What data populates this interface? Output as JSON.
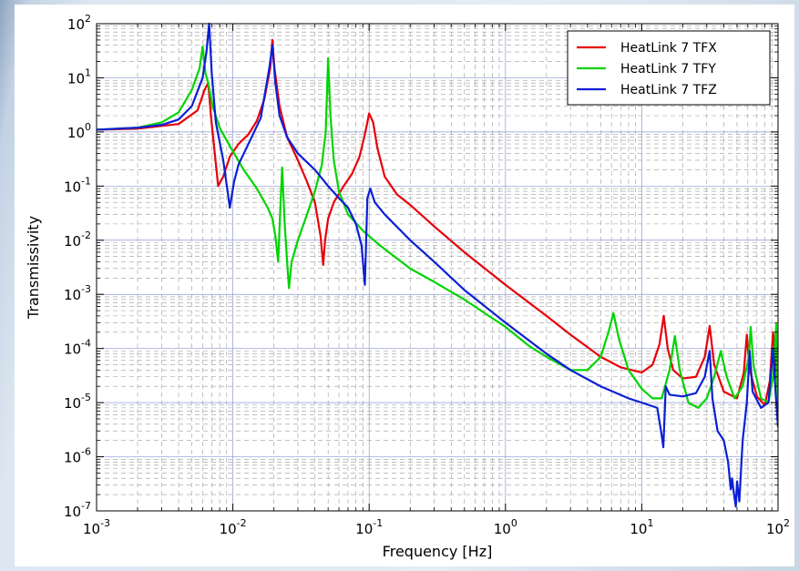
{
  "chart_data": {
    "type": "line",
    "title": "",
    "xlabel": "Frequency [Hz]",
    "ylabel": "Transmissivity",
    "x_scale": "log",
    "y_scale": "log",
    "xlim": [
      0.001,
      100
    ],
    "ylim": [
      1e-07,
      100
    ],
    "grid": true,
    "legend_position": "top-right",
    "x_tick_labels": [
      {
        "base": "10",
        "exp": "-3"
      },
      {
        "base": "10",
        "exp": "-2"
      },
      {
        "base": "10",
        "exp": "-1"
      },
      {
        "base": "10",
        "exp": "0"
      },
      {
        "base": "10",
        "exp": "1"
      },
      {
        "base": "10",
        "exp": "2"
      }
    ],
    "y_tick_labels": [
      {
        "base": "10",
        "exp": "-7"
      },
      {
        "base": "10",
        "exp": "-6"
      },
      {
        "base": "10",
        "exp": "-5"
      },
      {
        "base": "10",
        "exp": "-4"
      },
      {
        "base": "10",
        "exp": "-3"
      },
      {
        "base": "10",
        "exp": "-2"
      },
      {
        "base": "10",
        "exp": "-1"
      },
      {
        "base": "10",
        "exp": "0"
      },
      {
        "base": "10",
        "exp": "1"
      },
      {
        "base": "10",
        "exp": "2"
      }
    ],
    "series": [
      {
        "name": "HeatLink 7 TFX",
        "color": "#e8000b",
        "points": [
          [
            0.001,
            1.1
          ],
          [
            0.002,
            1.15
          ],
          [
            0.004,
            1.4
          ],
          [
            0.0055,
            2.5
          ],
          [
            0.0062,
            6
          ],
          [
            0.0066,
            8
          ],
          [
            0.0069,
            2
          ],
          [
            0.0073,
            0.5
          ],
          [
            0.0078,
            0.1
          ],
          [
            0.0085,
            0.15
          ],
          [
            0.0095,
            0.35
          ],
          [
            0.011,
            0.6
          ],
          [
            0.013,
            0.9
          ],
          [
            0.015,
            1.6
          ],
          [
            0.017,
            4
          ],
          [
            0.0188,
            15
          ],
          [
            0.0195,
            50
          ],
          [
            0.0202,
            15
          ],
          [
            0.022,
            3
          ],
          [
            0.025,
            0.8
          ],
          [
            0.03,
            0.3
          ],
          [
            0.035,
            0.12
          ],
          [
            0.04,
            0.05
          ],
          [
            0.044,
            0.012
          ],
          [
            0.046,
            0.0035
          ],
          [
            0.0475,
            0.01
          ],
          [
            0.05,
            0.025
          ],
          [
            0.055,
            0.05
          ],
          [
            0.065,
            0.1
          ],
          [
            0.075,
            0.17
          ],
          [
            0.085,
            0.35
          ],
          [
            0.093,
            0.9
          ],
          [
            0.1,
            2.2
          ],
          [
            0.107,
            1.5
          ],
          [
            0.115,
            0.5
          ],
          [
            0.13,
            0.15
          ],
          [
            0.16,
            0.07
          ],
          [
            0.2,
            0.045
          ],
          [
            0.3,
            0.018
          ],
          [
            0.5,
            0.006
          ],
          [
            1,
            0.0015
          ],
          [
            2,
            0.0004
          ],
          [
            3,
            0.00018
          ],
          [
            5,
            7e-05
          ],
          [
            7,
            4.5e-05
          ],
          [
            10,
            3.6e-05
          ],
          [
            12,
            5e-05
          ],
          [
            13.5,
            0.00012
          ],
          [
            14.5,
            0.0004
          ],
          [
            15.5,
            0.0001
          ],
          [
            17,
            4e-05
          ],
          [
            20,
            2.8e-05
          ],
          [
            25,
            3e-05
          ],
          [
            29,
            7e-05
          ],
          [
            31.5,
            0.00026
          ],
          [
            34,
            5e-05
          ],
          [
            40,
            1.6e-05
          ],
          [
            50,
            1.2e-05
          ],
          [
            56,
            3.5e-05
          ],
          [
            59,
            0.00018
          ],
          [
            62,
            4e-05
          ],
          [
            70,
            1.3e-05
          ],
          [
            80,
            9e-06
          ],
          [
            87,
            2.5e-05
          ],
          [
            92,
            0.0002
          ],
          [
            97,
            4e-05
          ],
          [
            100,
            1.5e-05
          ]
        ]
      },
      {
        "name": "HeatLink 7 TFY",
        "color": "#00d400",
        "points": [
          [
            0.001,
            1.1
          ],
          [
            0.002,
            1.2
          ],
          [
            0.003,
            1.5
          ],
          [
            0.004,
            2.3
          ],
          [
            0.005,
            6
          ],
          [
            0.0057,
            15
          ],
          [
            0.006,
            38
          ],
          [
            0.0063,
            12
          ],
          [
            0.0066,
            8
          ],
          [
            0.0071,
            3
          ],
          [
            0.008,
            1.2
          ],
          [
            0.0095,
            0.55
          ],
          [
            0.012,
            0.2
          ],
          [
            0.015,
            0.09
          ],
          [
            0.018,
            0.04
          ],
          [
            0.0195,
            0.025
          ],
          [
            0.0205,
            0.012
          ],
          [
            0.0215,
            0.004
          ],
          [
            0.0222,
            0.03
          ],
          [
            0.023,
            0.22
          ],
          [
            0.024,
            0.02
          ],
          [
            0.025,
            0.004
          ],
          [
            0.0258,
            0.0013
          ],
          [
            0.027,
            0.004
          ],
          [
            0.03,
            0.01
          ],
          [
            0.035,
            0.03
          ],
          [
            0.04,
            0.08
          ],
          [
            0.045,
            0.25
          ],
          [
            0.048,
            1
          ],
          [
            0.05,
            23
          ],
          [
            0.052,
            2
          ],
          [
            0.055,
            0.3
          ],
          [
            0.06,
            0.08
          ],
          [
            0.07,
            0.03
          ],
          [
            0.09,
            0.015
          ],
          [
            0.12,
            0.008
          ],
          [
            0.2,
            0.003
          ],
          [
            0.3,
            0.0017
          ],
          [
            0.5,
            0.0008
          ],
          [
            1,
            0.00025
          ],
          [
            1.5,
            0.00011
          ],
          [
            2,
            7e-05
          ],
          [
            3,
            4e-05
          ],
          [
            4,
            4e-05
          ],
          [
            5,
            7e-05
          ],
          [
            5.7,
            0.0002
          ],
          [
            6.2,
            0.00045
          ],
          [
            6.8,
            0.00015
          ],
          [
            8,
            4e-05
          ],
          [
            10,
            1.8e-05
          ],
          [
            12,
            1.2e-05
          ],
          [
            14,
            1.2e-05
          ],
          [
            16,
            4e-05
          ],
          [
            17.5,
            0.00017
          ],
          [
            19,
            4e-05
          ],
          [
            22,
            1e-05
          ],
          [
            26,
            8e-06
          ],
          [
            30,
            1.2e-05
          ],
          [
            34,
            3e-05
          ],
          [
            38,
            9e-05
          ],
          [
            42,
            3e-05
          ],
          [
            48,
            1.2e-05
          ],
          [
            55,
            2e-05
          ],
          [
            61,
            7e-05
          ],
          [
            63,
            0.00025
          ],
          [
            66,
            5e-05
          ],
          [
            75,
            1.2e-05
          ],
          [
            85,
            1e-05
          ],
          [
            92,
            3e-05
          ],
          [
            97,
            0.00028
          ],
          [
            100,
            4e-06
          ]
        ]
      },
      {
        "name": "HeatLink 7 TFZ",
        "color": "#0b1fd6",
        "points": [
          [
            0.001,
            1.1
          ],
          [
            0.002,
            1.2
          ],
          [
            0.003,
            1.35
          ],
          [
            0.004,
            1.7
          ],
          [
            0.005,
            3
          ],
          [
            0.006,
            10
          ],
          [
            0.0064,
            30
          ],
          [
            0.0067,
            100
          ],
          [
            0.007,
            12
          ],
          [
            0.0075,
            1.5
          ],
          [
            0.0085,
            0.3
          ],
          [
            0.0095,
            0.04
          ],
          [
            0.0102,
            0.12
          ],
          [
            0.011,
            0.25
          ],
          [
            0.013,
            0.6
          ],
          [
            0.016,
            1.8
          ],
          [
            0.0185,
            15
          ],
          [
            0.0195,
            40
          ],
          [
            0.0205,
            8
          ],
          [
            0.022,
            2
          ],
          [
            0.025,
            0.8
          ],
          [
            0.03,
            0.4
          ],
          [
            0.04,
            0.2
          ],
          [
            0.05,
            0.1
          ],
          [
            0.06,
            0.06
          ],
          [
            0.07,
            0.04
          ],
          [
            0.08,
            0.02
          ],
          [
            0.088,
            0.008
          ],
          [
            0.093,
            0.0015
          ],
          [
            0.097,
            0.06
          ],
          [
            0.102,
            0.09
          ],
          [
            0.11,
            0.05
          ],
          [
            0.13,
            0.03
          ],
          [
            0.2,
            0.01
          ],
          [
            0.3,
            0.004
          ],
          [
            0.5,
            0.0012
          ],
          [
            1,
            0.0003
          ],
          [
            2,
            8e-05
          ],
          [
            3,
            4e-05
          ],
          [
            5,
            2e-05
          ],
          [
            8,
            1.2e-05
          ],
          [
            10,
            1e-05
          ],
          [
            13,
            8e-06
          ],
          [
            14,
            2.5e-06
          ],
          [
            14.4,
            1.5e-06
          ],
          [
            15,
            2e-05
          ],
          [
            16,
            1.4e-05
          ],
          [
            20,
            1.3e-05
          ],
          [
            25,
            1.5e-05
          ],
          [
            29,
            3e-05
          ],
          [
            31.5,
            9e-05
          ],
          [
            33,
            1.2e-05
          ],
          [
            36,
            3e-06
          ],
          [
            40,
            2e-06
          ],
          [
            43,
            8e-07
          ],
          [
            45,
            2.5e-07
          ],
          [
            46,
            4e-07
          ],
          [
            47,
            2.5e-07
          ],
          [
            49,
            1.2e-07
          ],
          [
            50,
            3.5e-07
          ],
          [
            52,
            1.5e-07
          ],
          [
            55,
            2e-06
          ],
          [
            59,
            1e-05
          ],
          [
            62,
            9e-05
          ],
          [
            65,
            1.6e-05
          ],
          [
            75,
            8e-06
          ],
          [
            85,
            1e-05
          ],
          [
            92,
            0.0001
          ],
          [
            96,
            1.5e-05
          ],
          [
            100,
            3.5e-06
          ]
        ]
      }
    ]
  }
}
